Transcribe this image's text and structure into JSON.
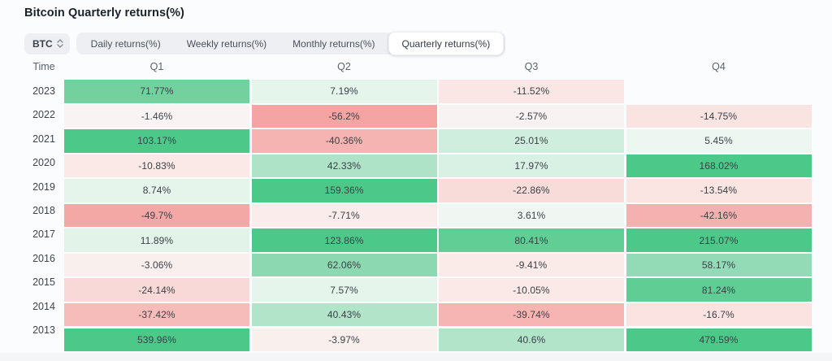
{
  "header": {
    "title": "Bitcoin Quarterly returns(%)"
  },
  "controls": {
    "asset_selector": {
      "value": "BTC",
      "icon": "updown-chevron-icon"
    },
    "tabs": [
      {
        "key": "daily",
        "label": "Daily returns(%)",
        "selected": false
      },
      {
        "key": "weekly",
        "label": "Weekly returns(%)",
        "selected": false
      },
      {
        "key": "monthly",
        "label": "Monthly returns(%)",
        "selected": false
      },
      {
        "key": "quarterly",
        "label": "Quarterly returns(%)",
        "selected": true
      }
    ]
  },
  "chart_data": {
    "type": "heatmap",
    "title": "Bitcoin Quarterly returns(%)",
    "columns": [
      "Time",
      "Q1",
      "Q2",
      "Q3",
      "Q4"
    ],
    "legend": "green = positive return, red = negative return, intensity scales with magnitude",
    "colors": {
      "positive_strong": "#4cc888",
      "negative_strong": "#f4a5a3",
      "text": "#3c4148"
    },
    "rows": [
      {
        "year": "2023",
        "cells": [
          {
            "q": "Q1",
            "value": "71.77%",
            "color": "#73d19f"
          },
          {
            "q": "Q2",
            "value": "7.19%",
            "color": "#e6f5ec"
          },
          {
            "q": "Q3",
            "value": "-11.52%",
            "color": "#fae7e5"
          },
          {
            "q": "Q4",
            "value": null,
            "color": null
          }
        ]
      },
      {
        "year": "2022",
        "cells": [
          {
            "q": "Q1",
            "value": "-1.46%",
            "color": "#f8f4f3"
          },
          {
            "q": "Q2",
            "value": "-56.2%",
            "color": "#f4a5a3"
          },
          {
            "q": "Q3",
            "value": "-2.57%",
            "color": "#f8f3f2"
          },
          {
            "q": "Q4",
            "value": "-14.75%",
            "color": "#fae4e2"
          }
        ]
      },
      {
        "year": "2021",
        "cells": [
          {
            "q": "Q1",
            "value": "103.17%",
            "color": "#4cc888"
          },
          {
            "q": "Q2",
            "value": "-40.36%",
            "color": "#f5b3b1"
          },
          {
            "q": "Q3",
            "value": "25.01%",
            "color": "#d0eedd"
          },
          {
            "q": "Q4",
            "value": "5.45%",
            "color": "#edf6f0"
          }
        ]
      },
      {
        "year": "2020",
        "cells": [
          {
            "q": "Q1",
            "value": "-10.83%",
            "color": "#fae9e7"
          },
          {
            "q": "Q2",
            "value": "42.33%",
            "color": "#aee3c7"
          },
          {
            "q": "Q3",
            "value": "17.97%",
            "color": "#d9f1e4"
          },
          {
            "q": "Q4",
            "value": "168.02%",
            "color": "#4cc888"
          }
        ]
      },
      {
        "year": "2019",
        "cells": [
          {
            "q": "Q1",
            "value": "8.74%",
            "color": "#e6f5ec"
          },
          {
            "q": "Q2",
            "value": "159.36%",
            "color": "#4cc888"
          },
          {
            "q": "Q3",
            "value": "-22.86%",
            "color": "#f8dcda"
          },
          {
            "q": "Q4",
            "value": "-13.54%",
            "color": "#fae5e3"
          }
        ]
      },
      {
        "year": "2018",
        "cells": [
          {
            "q": "Q1",
            "value": "-49.7%",
            "color": "#f4a8a6"
          },
          {
            "q": "Q2",
            "value": "-7.71%",
            "color": "#faeceA"
          },
          {
            "q": "Q3",
            "value": "3.61%",
            "color": "#f0f7f3"
          },
          {
            "q": "Q4",
            "value": "-42.16%",
            "color": "#f5b1af"
          }
        ]
      },
      {
        "year": "2017",
        "cells": [
          {
            "q": "Q1",
            "value": "11.89%",
            "color": "#e2f4ea"
          },
          {
            "q": "Q2",
            "value": "123.86%",
            "color": "#4cc888"
          },
          {
            "q": "Q3",
            "value": "80.41%",
            "color": "#60ce95"
          },
          {
            "q": "Q4",
            "value": "215.07%",
            "color": "#4cc888"
          }
        ]
      },
      {
        "year": "2016",
        "cells": [
          {
            "q": "Q1",
            "value": "-3.06%",
            "color": "#f9f0ee"
          },
          {
            "q": "Q2",
            "value": "62.06%",
            "color": "#8cd9b1"
          },
          {
            "q": "Q3",
            "value": "-9.41%",
            "color": "#faeae8"
          },
          {
            "q": "Q4",
            "value": "58.17%",
            "color": "#93dbb6"
          }
        ]
      },
      {
        "year": "2015",
        "cells": [
          {
            "q": "Q1",
            "value": "-24.14%",
            "color": "#f8d9d7"
          },
          {
            "q": "Q2",
            "value": "7.57%",
            "color": "#e6f5ec"
          },
          {
            "q": "Q3",
            "value": "-10.05%",
            "color": "#fae9e7"
          },
          {
            "q": "Q4",
            "value": "81.24%",
            "color": "#5fcd94"
          }
        ]
      },
      {
        "year": "2014",
        "cells": [
          {
            "q": "Q1",
            "value": "-37.42%",
            "color": "#f6bcba"
          },
          {
            "q": "Q2",
            "value": "40.43%",
            "color": "#b2e4ca"
          },
          {
            "q": "Q3",
            "value": "-39.74%",
            "color": "#f6b5b3"
          },
          {
            "q": "Q4",
            "value": "-16.7%",
            "color": "#fae3e1"
          }
        ]
      },
      {
        "year": "2013",
        "cells": [
          {
            "q": "Q1",
            "value": "539.96%",
            "color": "#4cc888"
          },
          {
            "q": "Q2",
            "value": "-3.97%",
            "color": "#f9f0ee"
          },
          {
            "q": "Q3",
            "value": "40.6%",
            "color": "#b2e4ca"
          },
          {
            "q": "Q4",
            "value": "479.59%",
            "color": "#4cc888"
          }
        ]
      }
    ]
  }
}
